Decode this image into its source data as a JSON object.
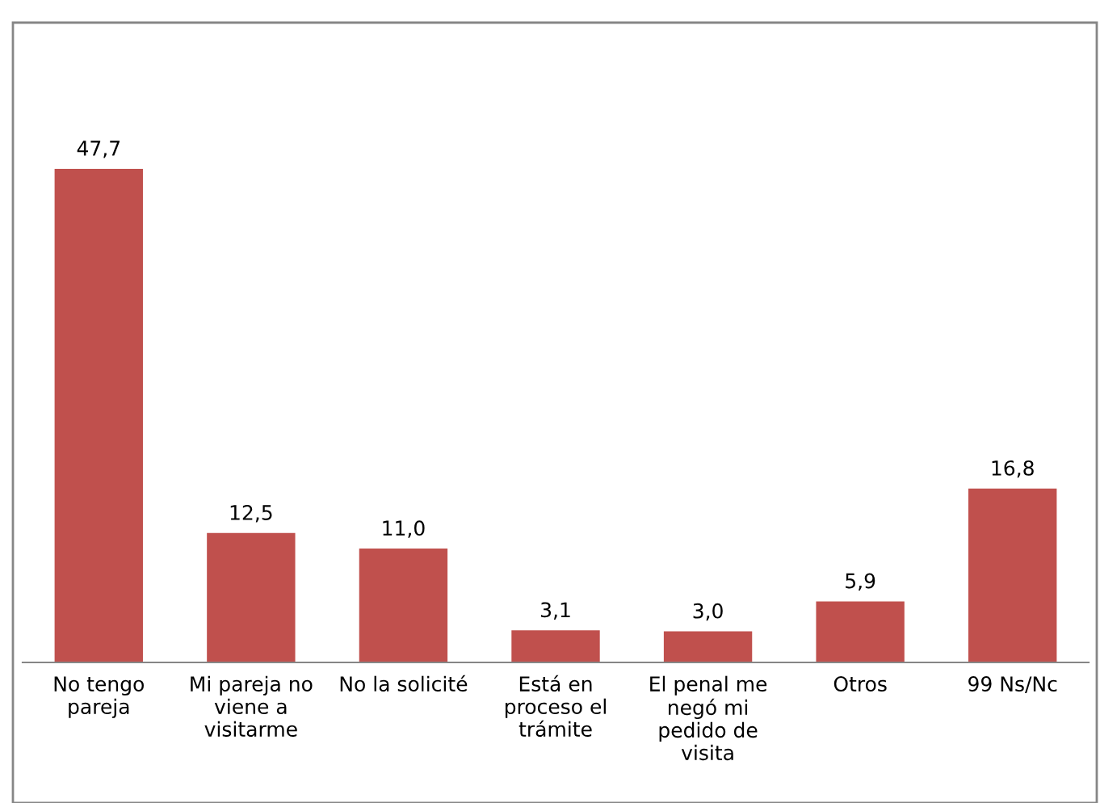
{
  "chart_data": {
    "type": "bar",
    "categories": [
      "No tengo\npareja",
      "Mi pareja no\nviene a\nvisitarme",
      "No la solicité",
      "Está en\nproceso el\ntrámite",
      "El penal me\nnegó mi\npedido de\nvisita",
      "Otros",
      "99 Ns/Nc"
    ],
    "values": [
      47.7,
      12.5,
      11.0,
      3.1,
      3.0,
      5.9,
      16.8
    ],
    "value_labels": [
      "47,7",
      "12,5",
      "11,0",
      "3,1",
      "3,0",
      "5,9",
      "16,8"
    ],
    "color": "#c0504d",
    "grid": false,
    "legend": false,
    "tick_labels": "x"
  }
}
